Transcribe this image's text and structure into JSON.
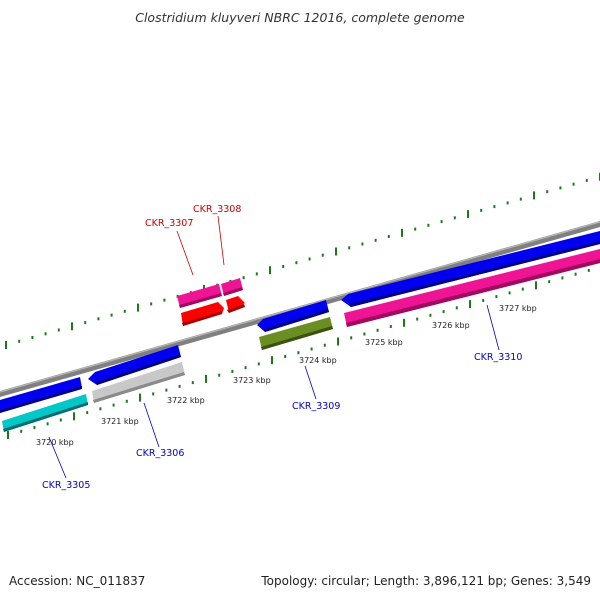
{
  "title": "Clostridium kluyveri NBRC 12016, complete genome",
  "footer": {
    "accession": "Accession: NC_011837",
    "genome_info": "Topology: circular; Length: 3,896,121 bp; Genes: 3,549"
  },
  "colors": {
    "backbone": "#808080",
    "tick": "#1a7a1a",
    "label_forward": "#cc0000",
    "label_reverse": "#0000cc",
    "blue": "#0000ee",
    "cyan": "#00c8c8",
    "gray": "#c8c8c8",
    "olive": "#6b8e23",
    "magenta": "#ee1493",
    "red": "#ff0000"
  },
  "scale": {
    "labels": [
      "3720 kbp",
      "3721 kbp",
      "3722 kbp",
      "3723 kbp",
      "3724 kbp",
      "3725 kbp",
      "3726 kbp",
      "3727 kbp"
    ]
  },
  "genes": [
    {
      "id": "CKR_3305",
      "label": "CKR_3305",
      "strand": "reverse",
      "track_colors": [
        "blue",
        "cyan"
      ]
    },
    {
      "id": "CKR_3306",
      "label": "CKR_3306",
      "strand": "reverse",
      "track_colors": [
        "blue",
        "gray"
      ]
    },
    {
      "id": "CKR_3307",
      "label": "CKR_3307",
      "strand": "forward",
      "track_colors": [
        "magenta",
        "red"
      ]
    },
    {
      "id": "CKR_3308",
      "label": "CKR_3308",
      "strand": "forward",
      "track_colors": [
        "magenta",
        "red"
      ]
    },
    {
      "id": "CKR_3309",
      "label": "CKR_3309",
      "strand": "reverse",
      "track_colors": [
        "blue",
        "olive"
      ]
    },
    {
      "id": "CKR_3310",
      "label": "CKR_3310",
      "strand": "reverse",
      "track_colors": [
        "blue",
        "magenta"
      ]
    }
  ]
}
